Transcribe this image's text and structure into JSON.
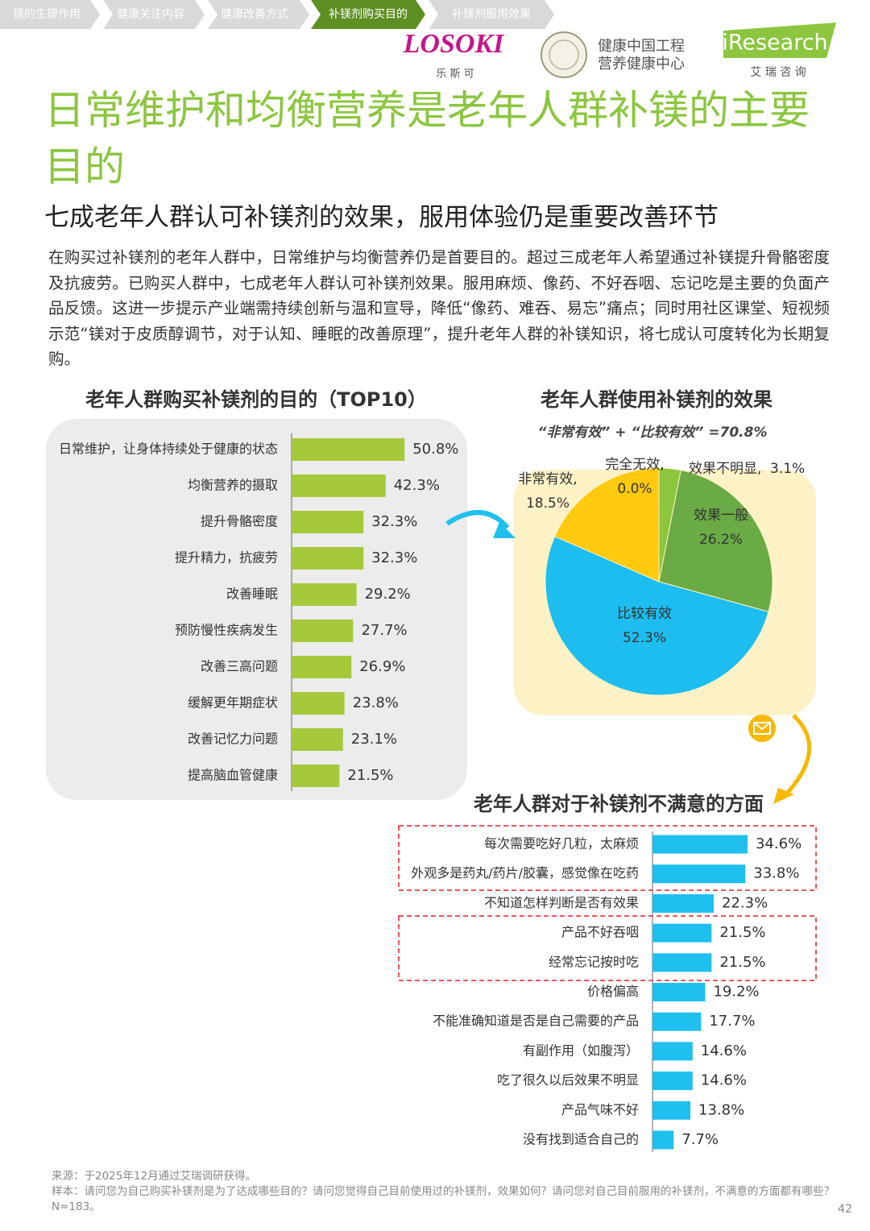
{
  "nav": [
    "镁的生理作用",
    "健康关注内容",
    "健康改善方式",
    "补镁剂购买目的",
    "补镁剂服用效果"
  ],
  "logos": {
    "losoki": "LOSOKI",
    "losoki_cn": "乐 斯 可",
    "center_line1": "健康中国工程",
    "center_line2": "营养健康中心",
    "iresearch": "iResearch",
    "iresearch_cn": "艾 瑞 咨 询"
  },
  "title": "日常维护和均衡营养是老年人群补镁的主要目的",
  "subtitle": "七成老年人群认可补镁剂的效果，服用体验仍是重要改善环节",
  "body": "在购买过补镁剂的老年人群中，日常维护与均衡营养仍是首要目的。超过三成老年人希望通过补镁提升骨骼密度及抗疲劳。已购买人群中，七成老年人群认可补镁剂效果。服用麻烦、像药、不好吞咽、忘记吃是主要的负面产品反馈。这进一步提示产业端需持续创新与温和宣导，降低“像药、难吞、易忘”痛点；同时用社区课堂、短视频示范“镁对于皮质醇调节，对于认知、睡眠的改善原理”，提升老年人群的补镁知识，将七成认可度转化为长期复购。",
  "chart_data": [
    {
      "type": "bar",
      "orientation": "horizontal",
      "title": "老年人群购买补镁剂的目的（TOP10）",
      "color": "#a5c93a",
      "categories": [
        "日常维护，让身体持续处于健康的状态",
        "均衡营养的摄取",
        "提升骨骼密度",
        "提升精力，抗疲劳",
        "改善睡眠",
        "预防慢性疾病发生",
        "改善三高问题",
        "缓解更年期症状",
        "改善记忆力问题",
        "提高脑血管健康"
      ],
      "values": [
        50.8,
        42.3,
        32.3,
        32.3,
        29.2,
        27.7,
        26.9,
        23.8,
        23.1,
        21.5
      ],
      "value_labels": [
        "50.8%",
        "42.3%",
        "32.3%",
        "32.3%",
        "29.2%",
        "27.7%",
        "26.9%",
        "23.8%",
        "23.1%",
        "21.5%"
      ]
    },
    {
      "type": "pie",
      "title": "老年人群使用补镁剂的效果",
      "annotation": "“非常有效” + “比较有效” =70.8%",
      "categories": [
        "效果不明显,",
        "效果一般",
        "比较有效",
        "非常有效,",
        "完全无效,"
      ],
      "values": [
        3.1,
        26.2,
        52.3,
        18.5,
        0.0
      ],
      "value_labels": [
        "3.1%",
        "26.2%",
        "52.3%",
        "18.5%",
        "0.0%"
      ],
      "colors": [
        "#8cc63f",
        "#6aab45",
        "#1dbdef",
        "#ffc90e",
        "#999999"
      ]
    },
    {
      "type": "bar",
      "orientation": "horizontal",
      "title": "老年人群对于补镁剂不满意的方面",
      "color": "#1fbfef",
      "categories": [
        "每次需要吃好几粒，太麻烦",
        "外观多是药丸/药片/胶囊，感觉像在吃药",
        "不知道怎样判断是否有效果",
        "产品不好吞咽",
        "经常忘记按时吃",
        "价格偏高",
        "不能准确知道是否是自己需要的产品",
        "有副作用（如腹泻）",
        "吃了很久以后效果不明显",
        "产品气味不好",
        "没有找到适合自己的"
      ],
      "values": [
        34.6,
        33.8,
        22.3,
        21.5,
        21.5,
        19.2,
        17.7,
        14.6,
        14.6,
        13.8,
        7.7
      ],
      "value_labels": [
        "34.6%",
        "33.8%",
        "22.3%",
        "21.5%",
        "21.5%",
        "19.2%",
        "17.7%",
        "14.6%",
        "14.6%",
        "13.8%",
        "7.7%"
      ]
    }
  ],
  "footer": {
    "source": "来源：于2025年12月通过艾瑞调研获得。",
    "sample": "样本：请问您为自己购买补镁剂是为了达成哪些目的？请问您觉得自己目前使用过的补镁剂，效果如何？请问您对自己目前服用的补镁剂，不满意的方面都有哪些？N=183。",
    "page": "42"
  }
}
